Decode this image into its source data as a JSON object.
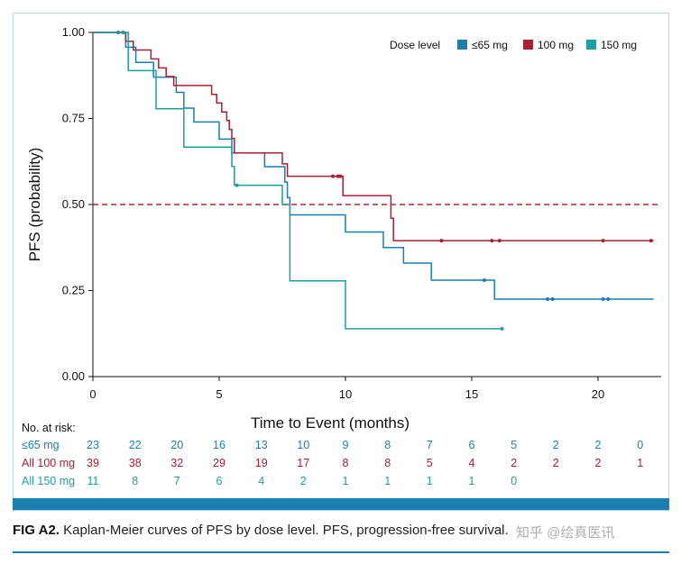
{
  "chart_data": {
    "type": "line",
    "subtype": "kaplan-meier",
    "ylabel": "PFS (probability)",
    "xlabel": "Time to Event (months)",
    "xlim": [
      0,
      22.5
    ],
    "ylim": [
      0,
      1
    ],
    "x_ticks": [
      0,
      5,
      10,
      15,
      20
    ],
    "y_ticks": [
      0.0,
      0.25,
      0.5,
      0.75,
      1.0
    ],
    "y_tick_labels": [
      "0.00",
      "0.25",
      "0.50",
      "0.75",
      "1.00"
    ],
    "reference_line": {
      "y": 0.5,
      "style": "dashed",
      "color": "#b5253a"
    },
    "legend": {
      "title": "Dose level",
      "placement": "top-right",
      "items": [
        {
          "label": "≤65 mg",
          "color": "#1a7fb0"
        },
        {
          "label": "100 mg",
          "color": "#a52032"
        },
        {
          "label": "150 mg",
          "color": "#1f9e9e"
        }
      ]
    },
    "series": [
      {
        "name": "≤65 mg",
        "color": "#1a7fb0",
        "steps": [
          [
            0,
            1.0
          ],
          [
            1.3,
            0.957
          ],
          [
            1.7,
            0.913
          ],
          [
            2.4,
            0.87
          ],
          [
            3.3,
            0.826
          ],
          [
            3.6,
            0.78
          ],
          [
            4.0,
            0.74
          ],
          [
            5.0,
            0.69
          ],
          [
            5.5,
            0.65
          ],
          [
            6.8,
            0.61
          ],
          [
            7.6,
            0.565
          ],
          [
            7.7,
            0.52
          ],
          [
            7.8,
            0.47
          ],
          [
            10.0,
            0.42
          ],
          [
            11.5,
            0.375
          ],
          [
            12.3,
            0.33
          ],
          [
            13.4,
            0.28
          ],
          [
            15.9,
            0.225
          ],
          [
            22.2,
            0.225
          ]
        ],
        "censored": [
          [
            1.0,
            1.0
          ],
          [
            15.5,
            0.28
          ],
          [
            18.0,
            0.225
          ],
          [
            18.2,
            0.225
          ],
          [
            20.2,
            0.225
          ],
          [
            20.4,
            0.225
          ]
        ]
      },
      {
        "name": "100 mg",
        "color": "#a52032",
        "steps": [
          [
            0,
            1.0
          ],
          [
            1.3,
            0.974
          ],
          [
            1.6,
            0.949
          ],
          [
            2.3,
            0.923
          ],
          [
            2.6,
            0.897
          ],
          [
            2.9,
            0.872
          ],
          [
            3.2,
            0.846
          ],
          [
            4.7,
            0.82
          ],
          [
            4.9,
            0.795
          ],
          [
            5.1,
            0.769
          ],
          [
            5.3,
            0.744
          ],
          [
            5.4,
            0.718
          ],
          [
            5.5,
            0.692
          ],
          [
            5.6,
            0.65
          ],
          [
            7.5,
            0.618
          ],
          [
            7.7,
            0.582
          ],
          [
            9.9,
            0.526
          ],
          [
            11.8,
            0.46
          ],
          [
            11.9,
            0.395
          ],
          [
            22.2,
            0.395
          ]
        ],
        "censored": [
          [
            1.2,
            1.0
          ],
          [
            9.5,
            0.582
          ],
          [
            9.7,
            0.582
          ],
          [
            9.8,
            0.582
          ],
          [
            13.8,
            0.395
          ],
          [
            15.8,
            0.395
          ],
          [
            16.1,
            0.395
          ],
          [
            20.2,
            0.395
          ],
          [
            22.1,
            0.395
          ]
        ]
      },
      {
        "name": "150 mg",
        "color": "#1f9e9e",
        "steps": [
          [
            0,
            1.0
          ],
          [
            1.4,
            0.889
          ],
          [
            2.5,
            0.778
          ],
          [
            3.6,
            0.667
          ],
          [
            5.5,
            0.611
          ],
          [
            5.6,
            0.556
          ],
          [
            7.5,
            0.5
          ],
          [
            7.8,
            0.278
          ],
          [
            10.0,
            0.139
          ],
          [
            16.2,
            0.139
          ]
        ],
        "censored": [
          [
            1.2,
            1.0
          ],
          [
            5.7,
            0.556
          ],
          [
            16.2,
            0.139
          ]
        ]
      }
    ],
    "risk_table": {
      "title": "No. at risk:",
      "times": [
        0,
        1.67,
        3.33,
        5,
        6.67,
        8.33,
        10,
        11.67,
        13.33,
        15,
        16.67,
        18.33,
        20,
        21.67
      ],
      "rows": [
        {
          "label": "≤65 mg",
          "color": "#1a7fb0",
          "values": [
            "23",
            "22",
            "20",
            "16",
            "13",
            "10",
            "9",
            "8",
            "7",
            "6",
            "5",
            "2",
            "2",
            "0"
          ]
        },
        {
          "label": "All 100 mg",
          "color": "#a52032",
          "values": [
            "39",
            "38",
            "32",
            "29",
            "19",
            "17",
            "8",
            "8",
            "5",
            "4",
            "2",
            "2",
            "2",
            "1"
          ]
        },
        {
          "label": "All 150 mg",
          "color": "#1f9e9e",
          "values": [
            "11",
            "8",
            "7",
            "6",
            "4",
            "2",
            "1",
            "1",
            "1",
            "1",
            "0"
          ]
        }
      ]
    }
  },
  "caption": {
    "label": "FIG A2.",
    "text": "Kaplan-Meier curves of PFS by dose level. PFS, progression-free survival."
  },
  "watermark": "知乎 @绘真医讯"
}
